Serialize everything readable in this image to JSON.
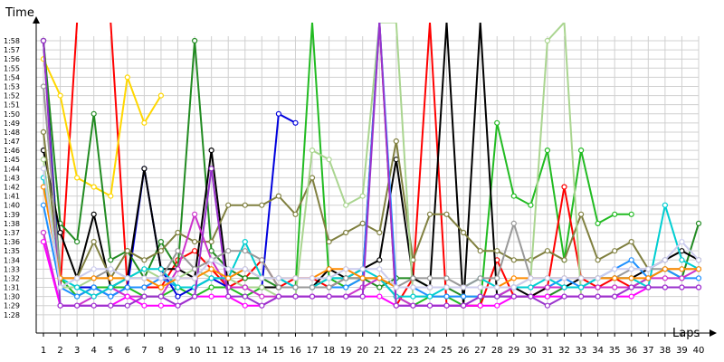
{
  "chart_data": {
    "type": "line",
    "xlabel": "Laps",
    "ylabel": "Time",
    "x": [
      1,
      2,
      3,
      4,
      5,
      6,
      7,
      8,
      9,
      10,
      11,
      12,
      13,
      14,
      15,
      16,
      17,
      18,
      19,
      20,
      21,
      22,
      23,
      24,
      25,
      26,
      27,
      28,
      29,
      30,
      31,
      32,
      33,
      34,
      35,
      36,
      37,
      38,
      39,
      40
    ],
    "xlim": [
      1,
      40
    ],
    "ylim": [
      87.5,
      119.5
    ],
    "y_ticks": [
      88,
      89,
      90,
      91,
      92,
      93,
      94,
      95,
      96,
      97,
      98,
      99,
      100,
      101,
      102,
      103,
      104,
      105,
      106,
      107,
      108,
      109,
      110,
      111,
      112,
      113,
      114,
      115,
      116,
      117,
      118
    ],
    "y_tick_labels": [
      "1:28",
      "1:29",
      "1:30",
      "1:31",
      "1:32",
      "1:33",
      "1:34",
      "1:35",
      "1:36",
      "1:37",
      "1:38",
      "1:39",
      "1:40",
      "1:41",
      "1:42",
      "1:43",
      "1:44",
      "1:45",
      "1:46",
      "1:47",
      "1:48",
      "1:49",
      "1:50",
      "1:51",
      "1:52",
      "1:53",
      "1:54",
      "1:55",
      "1:56",
      "1:57",
      "1:58"
    ],
    "x_tick_labels": [
      "1",
      "2",
      "3",
      "4",
      "5",
      "6",
      "7",
      "8",
      "9",
      "10",
      "11",
      "12",
      "13",
      "14",
      "15",
      "16",
      "17",
      "18",
      "19",
      "20",
      "21",
      "22",
      "23",
      "24",
      "25",
      "26",
      "27",
      "28",
      "29",
      "30",
      "31",
      "32",
      "33",
      "34",
      "35",
      "36",
      "37",
      "38",
      "39",
      "40"
    ],
    "grid": true,
    "series": [
      {
        "color": "#22bb22",
        "values": [
          118,
          92,
          90,
          91,
          91,
          91,
          90,
          90,
          91,
          90,
          91,
          91,
          90,
          91,
          91,
          91,
          120,
          92,
          91,
          92,
          92,
          90,
          89,
          90,
          90,
          89,
          89,
          109,
          101,
          100,
          106,
          94,
          106,
          98,
          99,
          99,
          null,
          null,
          null,
          null
        ]
      },
      {
        "color": "#ff0000",
        "values": [
          118,
          91,
          120,
          null,
          120,
          91,
          91,
          91,
          94,
          95,
          93,
          91,
          92,
          94,
          91,
          92,
          92,
          91,
          92,
          92,
          120,
          89,
          92,
          120,
          89,
          89,
          89,
          94,
          90,
          90,
          91,
          102,
          92,
          91,
          92,
          91,
          91,
          null,
          null,
          null
        ]
      },
      {
        "color": "#ffd700",
        "values": [
          116,
          112,
          103,
          102,
          101,
          114,
          109,
          112,
          null,
          null,
          null,
          null,
          null,
          null,
          null,
          null,
          null,
          null,
          null,
          null,
          null,
          null,
          null,
          null,
          null,
          null,
          null,
          null,
          null,
          null,
          null,
          null,
          null,
          null,
          null,
          null,
          null,
          null,
          null,
          null
        ]
      },
      {
        "color": "#0000dd",
        "values": [
          118,
          91,
          91,
          91,
          90,
          91,
          104,
          93,
          90,
          91,
          92,
          91,
          91,
          91,
          110,
          109,
          null,
          null,
          null,
          null,
          null,
          null,
          null,
          null,
          null,
          null,
          null,
          null,
          null,
          null,
          null,
          null,
          null,
          null,
          null,
          null,
          null,
          null,
          null,
          null
        ]
      },
      {
        "color": "#228b22",
        "values": [
          118,
          98,
          96,
          110,
          94,
          95,
          92,
          96,
          93,
          118,
          95,
          93,
          92,
          92,
          91,
          91,
          91,
          92,
          92,
          92,
          91,
          92,
          92,
          91,
          91,
          90,
          90,
          90,
          90,
          90,
          90,
          91,
          91,
          91,
          91,
          91,
          92,
          93,
          92,
          98
        ]
      },
      {
        "color": "#000000",
        "values": [
          106,
          97,
          92,
          99,
          91,
          92,
          104,
          93,
          93,
          92,
          106,
          91,
          91,
          91,
          91,
          91,
          91,
          93,
          92,
          93,
          94,
          105,
          92,
          91,
          120,
          89,
          120,
          90,
          91,
          90,
          91,
          91,
          92,
          92,
          92,
          92,
          93,
          94,
          95,
          94
        ]
      },
      {
        "color": "#808040",
        "values": [
          108,
          92,
          92,
          96,
          92,
          95,
          94,
          95,
          97,
          96,
          96,
          100,
          100,
          100,
          101,
          99,
          103,
          96,
          97,
          98,
          97,
          107,
          94,
          99,
          99,
          97,
          95,
          95,
          94,
          94,
          95,
          94,
          99,
          94,
          95,
          96,
          93,
          null,
          null,
          null
        ]
      },
      {
        "color": "#aad590",
        "values": [
          105,
          91,
          91,
          92,
          92,
          92,
          93,
          92,
          92,
          93,
          92,
          92,
          91,
          91,
          90,
          90,
          106,
          105,
          100,
          101,
          120,
          120,
          90,
          90,
          90,
          90,
          90,
          90,
          91,
          92,
          118,
          120,
          90,
          90,
          90,
          null,
          null,
          null,
          null,
          null
        ]
      },
      {
        "color": "#1e90ff",
        "values": [
          100,
          91,
          90,
          91,
          90,
          91,
          91,
          92,
          91,
          91,
          92,
          92,
          93,
          92,
          92,
          91,
          91,
          91,
          91,
          92,
          120,
          91,
          91,
          90,
          90,
          90,
          90,
          90,
          91,
          91,
          91,
          92,
          91,
          92,
          93,
          94,
          92,
          93,
          92,
          92
        ]
      },
      {
        "color": "#cc33cc",
        "values": [
          97,
          89,
          89,
          90,
          91,
          90,
          90,
          90,
          93,
          99,
          94,
          91,
          91,
          90,
          90,
          90,
          90,
          90,
          90,
          91,
          92,
          90,
          89,
          89,
          89,
          89,
          90,
          90,
          91,
          91,
          91,
          91,
          91,
          91,
          91,
          91,
          92,
          92,
          92,
          93
        ]
      },
      {
        "color": "#00ced1",
        "values": [
          103,
          92,
          91,
          90,
          91,
          92,
          93,
          93,
          91,
          91,
          92,
          92,
          96,
          92,
          92,
          91,
          91,
          92,
          92,
          93,
          92,
          90,
          90,
          90,
          91,
          91,
          92,
          91,
          91,
          91,
          92,
          91,
          91,
          92,
          92,
          92,
          91,
          100,
          94,
          93
        ]
      },
      {
        "color": "#ff00ff",
        "values": [
          96,
          89,
          89,
          89,
          89,
          90,
          89,
          89,
          89,
          90,
          90,
          90,
          89,
          89,
          90,
          90,
          90,
          90,
          90,
          90,
          90,
          89,
          89,
          89,
          89,
          89,
          89,
          89,
          90,
          90,
          90,
          90,
          90,
          90,
          90,
          90,
          91,
          91,
          91,
          91
        ]
      },
      {
        "color": "#9932cc",
        "values": [
          118,
          89,
          89,
          89,
          89,
          89,
          90,
          90,
          89,
          90,
          104,
          90,
          90,
          89,
          90,
          90,
          90,
          90,
          90,
          90,
          120,
          89,
          89,
          89,
          89,
          89,
          90,
          90,
          90,
          90,
          89,
          90,
          90,
          90,
          90,
          91,
          91,
          91,
          91,
          91
        ]
      },
      {
        "color": "#999999",
        "values": [
          113,
          92,
          92,
          92,
          93,
          92,
          92,
          92,
          95,
          93,
          94,
          95,
          95,
          94,
          91,
          91,
          91,
          91,
          92,
          92,
          92,
          91,
          92,
          92,
          92,
          91,
          92,
          92,
          98,
          92,
          92,
          92,
          92,
          92,
          92,
          93,
          93,
          93,
          93,
          93
        ]
      },
      {
        "color": "#ff8c00",
        "values": [
          102,
          92,
          92,
          92,
          92,
          92,
          92,
          91,
          92,
          92,
          93,
          92,
          93,
          92,
          92,
          92,
          92,
          93,
          93,
          92,
          92,
          91,
          91,
          91,
          91,
          91,
          91,
          91,
          92,
          92,
          92,
          92,
          92,
          92,
          92,
          92,
          92,
          93,
          93,
          93
        ]
      },
      {
        "color": "#ccccee",
        "values": [
          104,
          91,
          92,
          93,
          93,
          92,
          92,
          92,
          92,
          92,
          94,
          93,
          93,
          92,
          92,
          92,
          92,
          92,
          93,
          93,
          93,
          91,
          91,
          91,
          91,
          91,
          91,
          91,
          91,
          92,
          92,
          92,
          92,
          92,
          93,
          93,
          93,
          94,
          96,
          94
        ]
      }
    ]
  }
}
